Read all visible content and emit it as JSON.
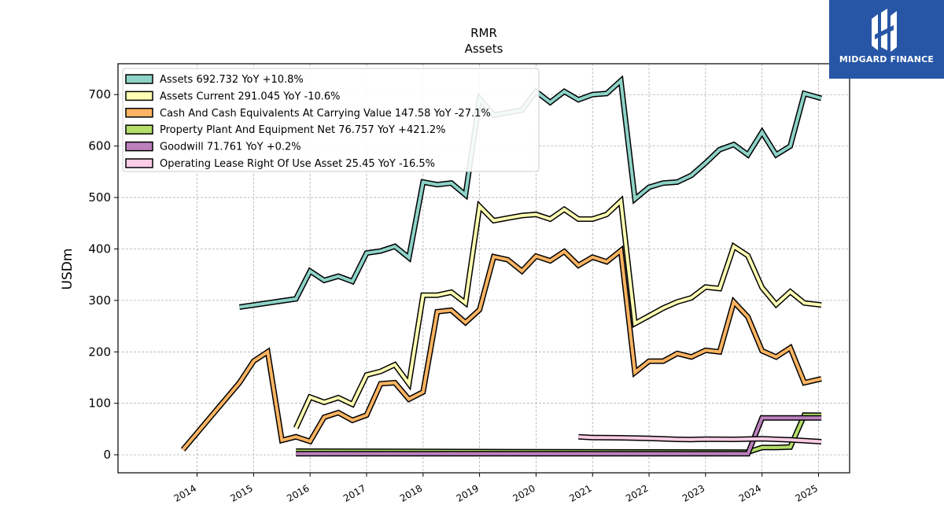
{
  "brand": {
    "logo_text": "MIDGARD FINANCE",
    "logo_icon": "midgard-logo-icon",
    "logo_color": "#2756a6"
  },
  "chart_data": {
    "type": "line",
    "title": "RMR",
    "subtitle": "Assets",
    "ylabel": "USDm",
    "xlabel": "",
    "ylim": [
      -35,
      760
    ],
    "xlim": [
      2012.6,
      2025.55
    ],
    "yticks": [
      0,
      100,
      200,
      300,
      400,
      500,
      600,
      700
    ],
    "xticks": [
      2014,
      2015,
      2016,
      2017,
      2018,
      2019,
      2020,
      2021,
      2022,
      2023,
      2024,
      2025
    ],
    "grid": true,
    "legend_position": "top-left",
    "series": [
      {
        "name": "Assets",
        "legend": "Assets  692.732 YoY +10.8%",
        "color": "#8dd3c7",
        "x": [
          2014.75,
          2015.75,
          2016.0,
          2016.25,
          2016.5,
          2016.75,
          2017.0,
          2017.25,
          2017.5,
          2017.75,
          2018.0,
          2018.25,
          2018.5,
          2018.75,
          2019.0,
          2019.25,
          2019.5,
          2019.75,
          2020.0,
          2020.25,
          2020.5,
          2020.75,
          2021.0,
          2021.25,
          2021.5,
          2021.75,
          2022.0,
          2022.25,
          2022.5,
          2022.75,
          2023.0,
          2023.25,
          2023.5,
          2023.75,
          2024.0,
          2024.25,
          2024.5,
          2024.75,
          2025.05
        ],
        "y": [
          287,
          303,
          357,
          339,
          347,
          337,
          392,
          396,
          405,
          383,
          530,
          525,
          528,
          505,
          692,
          660,
          665,
          670,
          706,
          685,
          706,
          690,
          700,
          702,
          727,
          497,
          520,
          528,
          530,
          543,
          567,
          593,
          603,
          583,
          627,
          583,
          600,
          702,
          692.732
        ]
      },
      {
        "name": "Assets Current",
        "legend": "Assets Current  291.045 YoY -10.6%",
        "color": "#ffffb3",
        "x": [
          2015.75,
          2016.0,
          2016.25,
          2016.5,
          2016.75,
          2017.0,
          2017.25,
          2017.5,
          2017.75,
          2018.0,
          2018.25,
          2018.5,
          2018.75,
          2019.0,
          2019.25,
          2019.5,
          2019.75,
          2020.0,
          2020.25,
          2020.5,
          2020.75,
          2021.0,
          2021.25,
          2021.5,
          2021.75,
          2022.0,
          2022.25,
          2022.5,
          2022.75,
          2023.0,
          2023.25,
          2023.5,
          2023.75,
          2024.0,
          2024.25,
          2024.5,
          2024.75,
          2025.05
        ],
        "y": [
          52,
          112,
          102,
          111,
          98,
          155,
          162,
          175,
          138,
          310,
          310,
          316,
          295,
          483,
          455,
          460,
          465,
          467,
          458,
          477,
          458,
          458,
          467,
          493,
          255,
          270,
          285,
          297,
          305,
          326,
          323,
          405,
          387,
          325,
          292,
          317,
          295,
          291.045
        ]
      },
      {
        "name": "Cash And Cash Equivalents At Carrying Value",
        "legend": "Cash And Cash Equivalents At Carrying Value  147.58 YoY -27.1%",
        "color": "#fdb462",
        "x": [
          2013.75,
          2014.75,
          2015.0,
          2015.25,
          2015.5,
          2015.75,
          2016.0,
          2016.25,
          2016.5,
          2016.75,
          2017.0,
          2017.25,
          2017.5,
          2017.75,
          2018.0,
          2018.25,
          2018.5,
          2018.75,
          2019.0,
          2019.25,
          2019.5,
          2019.75,
          2020.0,
          2020.25,
          2020.5,
          2020.75,
          2021.0,
          2021.25,
          2021.5,
          2021.75,
          2022.0,
          2022.25,
          2022.5,
          2022.75,
          2023.0,
          2023.25,
          2023.5,
          2023.75,
          2024.0,
          2024.25,
          2024.5,
          2024.75,
          2025.05
        ],
        "y": [
          10,
          140,
          182,
          200,
          28,
          35,
          26,
          73,
          82,
          67,
          77,
          138,
          140,
          108,
          122,
          278,
          281,
          257,
          282,
          385,
          379,
          357,
          386,
          377,
          395,
          368,
          384,
          375,
          397,
          160,
          182,
          182,
          197,
          190,
          203,
          200,
          297,
          268,
          202,
          190,
          208,
          140,
          147.58
        ]
      },
      {
        "name": "Property Plant And Equipment Net",
        "legend": "Property Plant And Equipment Net  76.757 YoY +421.2%",
        "color": "#b3de69",
        "x": [
          2015.75,
          2023.75,
          2024.0,
          2024.25,
          2024.5,
          2024.75,
          2025.05
        ],
        "y": [
          7,
          5,
          14,
          14,
          15,
          77,
          76.757
        ]
      },
      {
        "name": "Goodwill",
        "legend": "Goodwill  71.761 YoY +0.2%",
        "color": "#bc80bd",
        "x": [
          2015.75,
          2023.75,
          2024.0,
          2024.25,
          2024.5,
          2024.75,
          2025.05
        ],
        "y": [
          2,
          2,
          71.6,
          71.6,
          71.7,
          71.7,
          71.761
        ]
      },
      {
        "name": "Operating Lease Right Of Use Asset",
        "legend": "Operating Lease Right Of Use Asset  25.45 YoY -16.5%",
        "color": "#fccde5",
        "x": [
          2020.75,
          2021.0,
          2021.5,
          2022.0,
          2022.5,
          2022.75,
          2023.0,
          2023.5,
          2024.0,
          2024.5,
          2025.05
        ],
        "y": [
          35,
          33.5,
          33,
          32,
          30,
          29.5,
          30.5,
          30,
          31,
          29,
          25.45
        ]
      }
    ]
  }
}
